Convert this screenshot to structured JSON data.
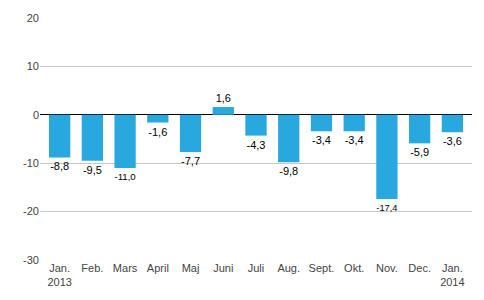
{
  "chart_data": {
    "type": "bar",
    "categories": [
      "Jan.\n2013",
      "Feb.",
      "Mars",
      "April",
      "Maj",
      "Juni",
      "Juli",
      "Aug.",
      "Sept.",
      "Okt.",
      "Nov.",
      "Dec.",
      "Jan.\n2014"
    ],
    "values": [
      -8.8,
      -9.5,
      -11.0,
      -1.6,
      -7.7,
      1.6,
      -4.3,
      -9.8,
      -3.4,
      -3.4,
      -17.4,
      -5.9,
      -3.6
    ],
    "value_labels": [
      "-8,8",
      "-9,5",
      "-11,0",
      "-1,6",
      "-7,7",
      "1,6",
      "-4,3",
      "-9,8",
      "-3,4",
      "-3,4",
      "-17,4",
      "-5,9",
      "-3,6"
    ],
    "data_labels": true,
    "color": "#29a8e0",
    "ylim": [
      -30,
      20
    ],
    "yticks": [
      -30,
      -20,
      -10,
      0,
      10,
      20
    ],
    "grid": true
  }
}
